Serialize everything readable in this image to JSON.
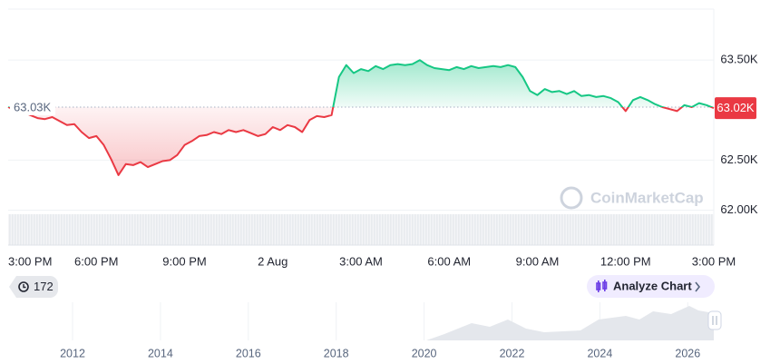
{
  "chart_data": {
    "type": "line",
    "categories": [
      "3:00 PM",
      null,
      null,
      null,
      null,
      null,
      null,
      null,
      null,
      null,
      null,
      null,
      "6:00 PM",
      null,
      null,
      null,
      null,
      null,
      null,
      null,
      null,
      null,
      null,
      null,
      "9:00 PM",
      null,
      null,
      null,
      null,
      null,
      null,
      null,
      null,
      null,
      null,
      null,
      "2 Aug",
      null,
      null,
      null,
      null,
      null,
      null,
      null,
      null,
      null,
      null,
      null,
      "3:00 AM",
      null,
      null,
      null,
      null,
      null,
      null,
      null,
      null,
      null,
      null,
      null,
      "6:00 AM",
      null,
      null,
      null,
      null,
      null,
      null,
      null,
      null,
      null,
      null,
      null,
      "9:00 AM",
      null,
      null,
      null,
      null,
      null,
      null,
      null,
      null,
      null,
      null,
      null,
      "12:00 PM",
      null,
      null,
      null,
      null,
      null,
      null,
      null,
      null,
      null,
      null,
      null,
      "3:00 PM"
    ],
    "series": [
      {
        "values": [
          63030,
          63000,
          62980,
          62950,
          62920,
          62910,
          62930,
          62890,
          62850,
          62860,
          62780,
          62720,
          62740,
          62650,
          62510,
          62350,
          62460,
          62450,
          62480,
          62430,
          62460,
          62490,
          62500,
          62550,
          62650,
          62690,
          62740,
          62750,
          62780,
          62760,
          62800,
          62780,
          62800,
          62770,
          62740,
          62760,
          62830,
          62800,
          62850,
          62830,
          62780,
          62900,
          62940,
          62930,
          62950,
          63330,
          63450,
          63370,
          63410,
          63390,
          63440,
          63410,
          63450,
          63460,
          63450,
          63460,
          63500,
          63450,
          63420,
          63410,
          63400,
          63430,
          63410,
          63440,
          63420,
          63430,
          63440,
          63430,
          63450,
          63430,
          63330,
          63190,
          63150,
          63210,
          63180,
          63190,
          63160,
          63190,
          63140,
          63150,
          63130,
          63140,
          63120,
          63080,
          62990,
          63100,
          63130,
          63100,
          63060,
          63030,
          63010,
          62990,
          63050,
          63030,
          63070,
          63050,
          63020
        ]
      }
    ],
    "color_up": "#16c784",
    "color_down": "#ea3943",
    "baseline": {
      "value": 63030,
      "label": "63.03K"
    },
    "last_price": {
      "value": 63020,
      "label": "63.02K"
    },
    "ylim": [
      61650,
      64010
    ],
    "yticks": [
      {
        "value": 62000,
        "label": "62.00K"
      },
      {
        "value": 62500,
        "label": "62.50K"
      },
      {
        "value": 63500,
        "label": "63.50K"
      }
    ],
    "grid": true
  },
  "ui": {
    "badge": "172",
    "analyze_button": "Analyze Chart",
    "watermark": "CoinMarketCap"
  },
  "navigator": {
    "labels": [
      "2012",
      "2014",
      "2016",
      "2018",
      "2020",
      "2022",
      "2024",
      "2026"
    ]
  }
}
